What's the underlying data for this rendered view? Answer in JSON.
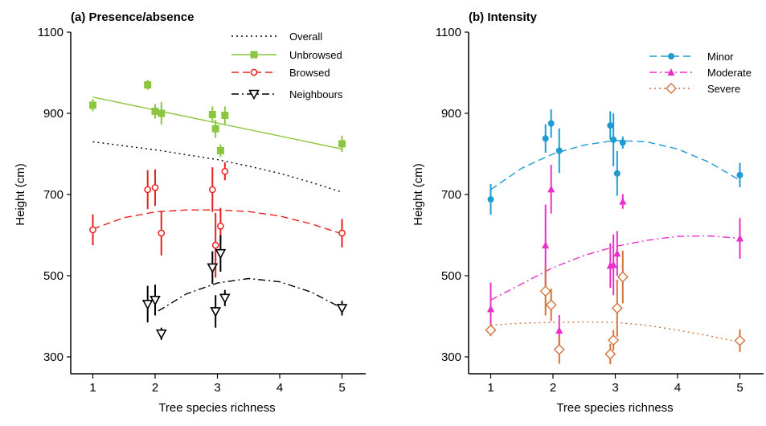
{
  "chart_data": [
    {
      "type": "scatter",
      "title": "(a) Presence/absence",
      "xlabel": "Tree species richness",
      "ylabel": "Height (cm)",
      "xlim": [
        0.8,
        5.15
      ],
      "ylim": [
        240,
        1100
      ],
      "xticks": [
        "1",
        "2",
        "3",
        "4",
        "5"
      ],
      "yticks": [
        "300",
        "500",
        "700",
        "900",
        "1100"
      ],
      "legend_position": "top-right",
      "series": [
        {
          "name": "Overall",
          "color": "#000000",
          "line_style": "dotted",
          "marker": "none",
          "fitted_curve": {
            "x": [
              1,
              1.5,
              2,
              2.5,
              3,
              3.5,
              4,
              4.5,
              5
            ],
            "y": [
              830,
              820,
              810,
              798,
              786,
              770,
              752,
              730,
              706
            ]
          }
        },
        {
          "name": "Unbrowsed",
          "color": "#8cc63e",
          "line_style": "solid",
          "marker": "filled-square",
          "points": [
            {
              "x": 1.0,
              "y": 920,
              "err": 15
            },
            {
              "x": 1.88,
              "y": 970,
              "err": 12
            },
            {
              "x": 2.0,
              "y": 905,
              "err": 18
            },
            {
              "x": 2.1,
              "y": 900,
              "err": 28
            },
            {
              "x": 2.92,
              "y": 897,
              "err": 20
            },
            {
              "x": 2.97,
              "y": 862,
              "err": 22
            },
            {
              "x": 3.05,
              "y": 808,
              "err": 15
            },
            {
              "x": 3.12,
              "y": 895,
              "err": 22
            },
            {
              "x": 5.0,
              "y": 825,
              "err": 20
            }
          ],
          "fitted_curve": {
            "x": [
              1,
              5
            ],
            "y": [
              940,
              812
            ]
          }
        },
        {
          "name": "Browsed",
          "color": "#e8201f",
          "line_style": "dashed",
          "marker": "open-circle",
          "points": [
            {
              "x": 1.0,
              "y": 613,
              "err": 38
            },
            {
              "x": 1.88,
              "y": 712,
              "err": 48
            },
            {
              "x": 2.0,
              "y": 717,
              "err": 45
            },
            {
              "x": 2.1,
              "y": 605,
              "err": 55
            },
            {
              "x": 2.92,
              "y": 712,
              "err": 55
            },
            {
              "x": 2.97,
              "y": 575,
              "err": 80
            },
            {
              "x": 3.05,
              "y": 622,
              "err": 45
            },
            {
              "x": 3.12,
              "y": 757,
              "err": 22
            },
            {
              "x": 5.0,
              "y": 605,
              "err": 35
            }
          ],
          "fitted_curve": {
            "x": [
              1,
              1.5,
              2,
              2.5,
              3,
              3.5,
              4,
              4.5,
              5
            ],
            "y": [
              615,
              643,
              657,
              662,
              662,
              658,
              647,
              628,
              603
            ]
          }
        },
        {
          "name": "Neighbours",
          "color": "#000000",
          "line_style": "dash-dot",
          "marker": "open-triangle-down",
          "points": [
            {
              "x": 1.88,
              "y": 430,
              "err": 45
            },
            {
              "x": 2.0,
              "y": 440,
              "err": 38
            },
            {
              "x": 2.1,
              "y": 357,
              "err": 15
            },
            {
              "x": 2.92,
              "y": 520,
              "err": 40
            },
            {
              "x": 2.97,
              "y": 412,
              "err": 40
            },
            {
              "x": 3.05,
              "y": 555,
              "err": 45
            },
            {
              "x": 3.12,
              "y": 445,
              "err": 20
            },
            {
              "x": 5.0,
              "y": 420,
              "err": 18
            }
          ],
          "fitted_curve": {
            "x": [
              2.05,
              2.5,
              3,
              3.5,
              4,
              4.5,
              5
            ],
            "y": [
              413,
              455,
              482,
              493,
              485,
              460,
              420
            ]
          }
        }
      ]
    },
    {
      "type": "scatter",
      "title": "(b) Intensity",
      "xlabel": "Tree species richness",
      "ylabel": "Height (cm)",
      "xlim": [
        0.8,
        5.15
      ],
      "ylim": [
        240,
        1100
      ],
      "xticks": [
        "1",
        "2",
        "3",
        "4",
        "5"
      ],
      "yticks": [
        "300",
        "500",
        "700",
        "900",
        "1100"
      ],
      "legend_position": "top-right",
      "series": [
        {
          "name": "Minor",
          "color": "#1f9bd1",
          "line_style": "dashed",
          "marker": "filled-circle",
          "points": [
            {
              "x": 1.0,
              "y": 688,
              "err": 38
            },
            {
              "x": 1.88,
              "y": 838,
              "err": 35
            },
            {
              "x": 1.97,
              "y": 875,
              "err": 35
            },
            {
              "x": 2.1,
              "y": 808,
              "err": 55
            },
            {
              "x": 2.92,
              "y": 870,
              "err": 35
            },
            {
              "x": 2.97,
              "y": 835,
              "err": 65
            },
            {
              "x": 3.03,
              "y": 752,
              "err": 55
            },
            {
              "x": 3.12,
              "y": 828,
              "err": 15
            },
            {
              "x": 5.0,
              "y": 748,
              "err": 30
            }
          ],
          "fitted_curve": {
            "x": [
              1,
              1.5,
              2,
              2.5,
              3,
              3.5,
              4,
              4.5,
              5
            ],
            "y": [
              712,
              765,
              800,
              822,
              833,
              830,
              812,
              780,
              735
            ]
          }
        },
        {
          "name": "Moderate",
          "color": "#e830c8",
          "line_style": "dash-dot",
          "marker": "filled-triangle-up",
          "points": [
            {
              "x": 1.0,
              "y": 418,
              "err": 65
            },
            {
              "x": 1.88,
              "y": 575,
              "err": 100
            },
            {
              "x": 1.97,
              "y": 713,
              "err": 60
            },
            {
              "x": 2.1,
              "y": 365,
              "err": 38
            },
            {
              "x": 2.92,
              "y": 525,
              "err": 55
            },
            {
              "x": 2.97,
              "y": 527,
              "err": 75
            },
            {
              "x": 3.03,
              "y": 555,
              "err": 55
            },
            {
              "x": 3.12,
              "y": 683,
              "err": 18
            },
            {
              "x": 5.0,
              "y": 592,
              "err": 50
            }
          ],
          "fitted_curve": {
            "x": [
              1,
              1.5,
              2,
              2.5,
              3,
              3.5,
              4,
              4.5,
              5
            ],
            "y": [
              440,
              480,
              520,
              550,
              572,
              587,
              597,
              598,
              592
            ]
          }
        },
        {
          "name": "Severe",
          "color": "#d2743c",
          "line_style": "dotted",
          "marker": "open-diamond",
          "points": [
            {
              "x": 1.0,
              "y": 366,
              "err": 15
            },
            {
              "x": 1.88,
              "y": 462,
              "err": 60
            },
            {
              "x": 1.97,
              "y": 428,
              "err": 40
            },
            {
              "x": 2.1,
              "y": 318,
              "err": 35
            },
            {
              "x": 2.92,
              "y": 307,
              "err": 25
            },
            {
              "x": 2.97,
              "y": 341,
              "err": 25
            },
            {
              "x": 3.03,
              "y": 420,
              "err": 70
            },
            {
              "x": 3.12,
              "y": 497,
              "err": 65
            },
            {
              "x": 5.0,
              "y": 340,
              "err": 28
            }
          ],
          "fitted_curve": {
            "x": [
              1,
              1.5,
              2,
              2.5,
              3,
              3.5,
              4,
              4.5,
              5
            ],
            "y": [
              378,
              383,
              385,
              386,
              385,
              378,
              366,
              352,
              336
            ]
          }
        }
      ]
    }
  ]
}
